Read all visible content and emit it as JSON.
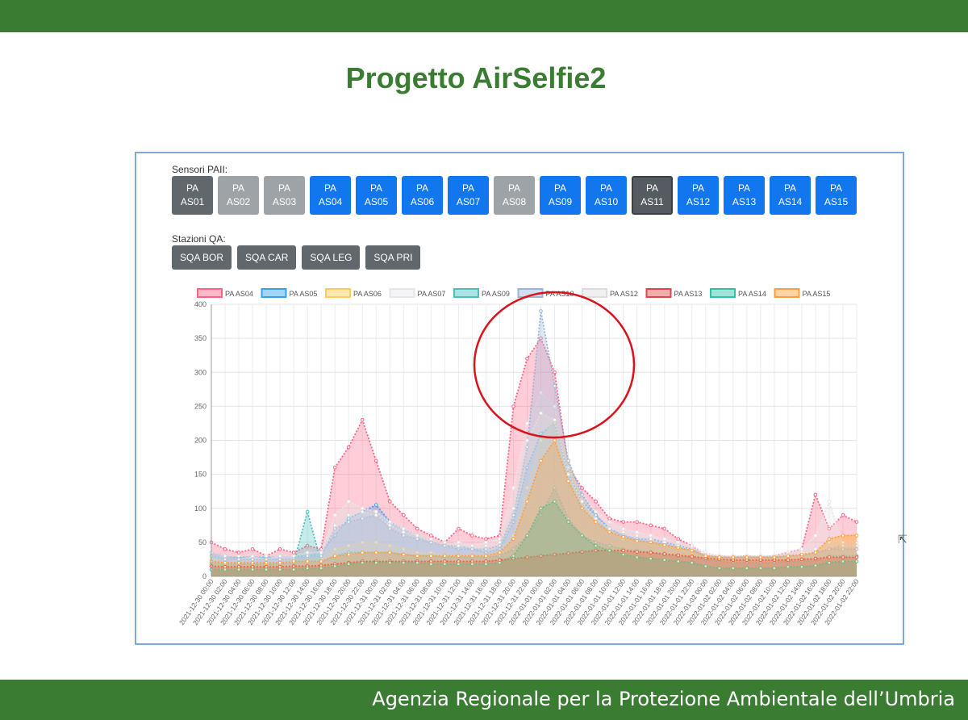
{
  "slide": {
    "title": "Progetto AirSelfie2",
    "footer": "Agenzia Regionale per la Protezione Ambientale dell’Umbria"
  },
  "controls": {
    "sensors_label": "Sensori PAII:",
    "sensors": [
      {
        "line1": "PA",
        "line2": "AS01",
        "state": "dark"
      },
      {
        "line1": "PA",
        "line2": "AS02",
        "state": "off"
      },
      {
        "line1": "PA",
        "line2": "AS03",
        "state": "off"
      },
      {
        "line1": "PA",
        "line2": "AS04",
        "state": "on"
      },
      {
        "line1": "PA",
        "line2": "AS05",
        "state": "on"
      },
      {
        "line1": "PA",
        "line2": "AS06",
        "state": "on"
      },
      {
        "line1": "PA",
        "line2": "AS07",
        "state": "on"
      },
      {
        "line1": "PA",
        "line2": "AS08",
        "state": "off"
      },
      {
        "line1": "PA",
        "line2": "AS09",
        "state": "on"
      },
      {
        "line1": "PA",
        "line2": "AS10",
        "state": "on"
      },
      {
        "line1": "PA",
        "line2": "AS11",
        "state": "sel"
      },
      {
        "line1": "PA",
        "line2": "AS12",
        "state": "on"
      },
      {
        "line1": "PA",
        "line2": "AS13",
        "state": "on"
      },
      {
        "line1": "PA",
        "line2": "AS14",
        "state": "on"
      },
      {
        "line1": "PA",
        "line2": "AS15",
        "state": "on"
      }
    ],
    "stations_label": "Stazioni QA:",
    "stations": [
      "SQA BOR",
      "SQA CAR",
      "SQA LEG",
      "SQA PRI"
    ]
  },
  "colors": {
    "brand_green": "#3a7d32",
    "button_active": "#1276ef",
    "button_inactive": "#9ea3a8",
    "annotation_circle": "#d9121b"
  },
  "chart_data": {
    "type": "area",
    "title": "",
    "xlabel": "",
    "ylabel": "",
    "ylim": [
      0,
      400
    ],
    "yticks": [
      0,
      50,
      100,
      150,
      200,
      250,
      300,
      350,
      400
    ],
    "grid": true,
    "legend_position": "top",
    "x": [
      "2021-12-30 00:00",
      "2021-12-30 02:00",
      "2021-12-30 04:00",
      "2021-12-30 06:00",
      "2021-12-30 08:00",
      "2021-12-30 10:00",
      "2021-12-30 12:00",
      "2021-12-30 14:00",
      "2021-12-30 16:00",
      "2021-12-30 18:00",
      "2021-12-30 20:00",
      "2021-12-30 22:00",
      "2021-12-31 00:00",
      "2021-12-31 02:00",
      "2021-12-31 04:00",
      "2021-12-31 06:00",
      "2021-12-31 08:00",
      "2021-12-31 10:00",
      "2021-12-31 12:00",
      "2021-12-31 14:00",
      "2021-12-31 16:00",
      "2021-12-31 18:00",
      "2021-12-31 20:00",
      "2021-12-31 22:00",
      "2022-01-01 00:00",
      "2022-01-01 02:00",
      "2022-01-01 04:00",
      "2022-01-01 06:00",
      "2022-01-01 08:00",
      "2022-01-01 10:00",
      "2022-01-01 12:00",
      "2022-01-01 14:00",
      "2022-01-01 16:00",
      "2022-01-01 18:00",
      "2022-01-01 20:00",
      "2022-01-01 22:00",
      "2022-01-02 00:00",
      "2022-01-02 02:00",
      "2022-01-02 04:00",
      "2022-01-02 06:00",
      "2022-01-02 08:00",
      "2022-01-02 10:00",
      "2022-01-02 12:00",
      "2022-01-02 14:00",
      "2022-01-02 16:00",
      "2022-01-02 18:00",
      "2022-01-02 20:00",
      "2022-01-02 22:00"
    ],
    "series": [
      {
        "name": "PA AS04",
        "color": "#ff6384",
        "values": [
          50,
          40,
          35,
          40,
          30,
          40,
          35,
          45,
          40,
          160,
          190,
          230,
          170,
          110,
          90,
          70,
          60,
          50,
          70,
          60,
          55,
          60,
          250,
          320,
          350,
          300,
          160,
          130,
          110,
          85,
          80,
          80,
          75,
          70,
          55,
          45,
          30,
          30,
          28,
          30,
          28,
          30,
          35,
          40,
          120,
          70,
          90,
          80
        ]
      },
      {
        "name": "PA AS05",
        "color": "#36a2eb",
        "values": [
          35,
          30,
          28,
          30,
          28,
          30,
          30,
          30,
          35,
          60,
          85,
          95,
          105,
          80,
          70,
          60,
          50,
          45,
          40,
          40,
          35,
          40,
          80,
          160,
          210,
          225,
          150,
          110,
          90,
          70,
          60,
          55,
          55,
          50,
          45,
          40,
          30,
          28,
          28,
          28,
          28,
          28,
          30,
          30,
          35,
          40,
          45,
          45
        ]
      },
      {
        "name": "PA AS06",
        "color": "#ffcd56",
        "values": [
          25,
          20,
          18,
          20,
          20,
          20,
          20,
          25,
          25,
          40,
          45,
          50,
          50,
          45,
          40,
          35,
          35,
          30,
          30,
          30,
          30,
          35,
          60,
          130,
          200,
          230,
          170,
          110,
          80,
          65,
          55,
          50,
          50,
          45,
          40,
          35,
          28,
          25,
          25,
          25,
          25,
          25,
          28,
          30,
          35,
          55,
          60,
          60
        ]
      },
      {
        "name": "PA AS07",
        "color": "#e6e6ea",
        "values": [
          30,
          25,
          25,
          28,
          25,
          30,
          30,
          35,
          35,
          90,
          110,
          100,
          95,
          80,
          70,
          60,
          50,
          45,
          50,
          45,
          50,
          55,
          130,
          225,
          270,
          250,
          160,
          120,
          95,
          80,
          70,
          65,
          60,
          55,
          50,
          45,
          35,
          30,
          30,
          30,
          30,
          30,
          35,
          40,
          60,
          110,
          45,
          45
        ]
      },
      {
        "name": "PA AS09",
        "color": "#4bc0c0",
        "values": [
          20,
          18,
          18,
          18,
          18,
          18,
          20,
          95,
          20,
          30,
          35,
          35,
          35,
          35,
          32,
          30,
          30,
          28,
          28,
          28,
          28,
          30,
          40,
          60,
          90,
          130,
          85,
          60,
          50,
          45,
          40,
          38,
          35,
          32,
          30,
          28,
          25,
          22,
          20,
          20,
          20,
          20,
          22,
          22,
          25,
          30,
          30,
          30
        ]
      },
      {
        "name": "PA AS10",
        "color": "#9bb5d6",
        "values": [
          30,
          25,
          25,
          25,
          25,
          25,
          25,
          30,
          30,
          70,
          80,
          85,
          90,
          70,
          60,
          55,
          50,
          45,
          45,
          40,
          40,
          45,
          90,
          190,
          390,
          280,
          170,
          120,
          90,
          70,
          60,
          55,
          50,
          48,
          42,
          38,
          30,
          28,
          27,
          27,
          27,
          27,
          30,
          30,
          35,
          40,
          40,
          40
        ]
      },
      {
        "name": "PA AS12",
        "color": "#dddddd",
        "values": [
          35,
          30,
          30,
          30,
          30,
          30,
          30,
          35,
          35,
          75,
          90,
          95,
          90,
          75,
          65,
          60,
          55,
          50,
          45,
          45,
          45,
          50,
          100,
          200,
          240,
          230,
          150,
          110,
          85,
          70,
          65,
          60,
          55,
          50,
          45,
          40,
          32,
          30,
          30,
          30,
          30,
          30,
          32,
          35,
          40,
          50,
          50,
          50
        ]
      },
      {
        "name": "PA AS13",
        "color": "#e0474c",
        "values": [
          15,
          14,
          14,
          14,
          14,
          14,
          15,
          15,
          16,
          18,
          20,
          22,
          22,
          22,
          22,
          22,
          22,
          22,
          22,
          22,
          22,
          24,
          26,
          28,
          30,
          32,
          34,
          36,
          38,
          38,
          38,
          36,
          35,
          33,
          31,
          29,
          27,
          25,
          24,
          24,
          24,
          24,
          24,
          25,
          26,
          28,
          28,
          28
        ]
      },
      {
        "name": "PA AS14",
        "color": "#2ec4a6",
        "values": [
          10,
          10,
          10,
          10,
          10,
          10,
          10,
          12,
          12,
          15,
          18,
          20,
          20,
          20,
          20,
          20,
          18,
          18,
          18,
          18,
          18,
          20,
          30,
          60,
          100,
          110,
          80,
          60,
          45,
          38,
          32,
          28,
          26,
          24,
          22,
          20,
          15,
          12,
          12,
          12,
          12,
          12,
          14,
          14,
          16,
          20,
          22,
          22
        ]
      },
      {
        "name": "PA AS15",
        "color": "#ff9f40",
        "values": [
          22,
          20,
          20,
          20,
          20,
          20,
          22,
          22,
          22,
          30,
          32,
          35,
          35,
          35,
          32,
          30,
          30,
          30,
          30,
          30,
          30,
          35,
          55,
          110,
          170,
          200,
          140,
          100,
          80,
          65,
          58,
          52,
          50,
          46,
          42,
          38,
          30,
          28,
          28,
          28,
          28,
          28,
          30,
          32,
          35,
          55,
          60,
          60
        ]
      }
    ]
  }
}
